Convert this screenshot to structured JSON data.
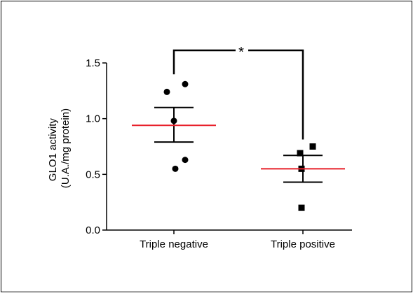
{
  "chart_data": {
    "type": "scatter",
    "title": "",
    "ylabel_line1": "GLO1 activity",
    "ylabel_line2": "(U.A./mg protein)",
    "ylim": [
      0,
      1.5
    ],
    "yticks": [
      "0.0",
      "0.5",
      "1.0",
      "1.5"
    ],
    "yticks_values": [
      0,
      0.5,
      1.0,
      1.5
    ],
    "categories": [
      "Triple negative",
      "Triple positive"
    ],
    "series": [
      {
        "category": "Triple negative",
        "marker": "circle",
        "points": [
          1.31,
          1.24,
          0.98,
          0.63,
          0.55
        ],
        "mean": 0.94,
        "sem_upper": 1.1,
        "sem_lower": 0.79
      },
      {
        "category": "Triple positive",
        "marker": "square",
        "points": [
          0.75,
          0.69,
          0.55,
          0.2
        ],
        "mean": 0.55,
        "sem_upper": 0.67,
        "sem_lower": 0.43
      }
    ],
    "significance": {
      "label": "*",
      "between": [
        "Triple negative",
        "Triple positive"
      ]
    },
    "colors": {
      "mean_line": "#e8202a",
      "marker": "#000000",
      "axis": "#000000"
    }
  }
}
